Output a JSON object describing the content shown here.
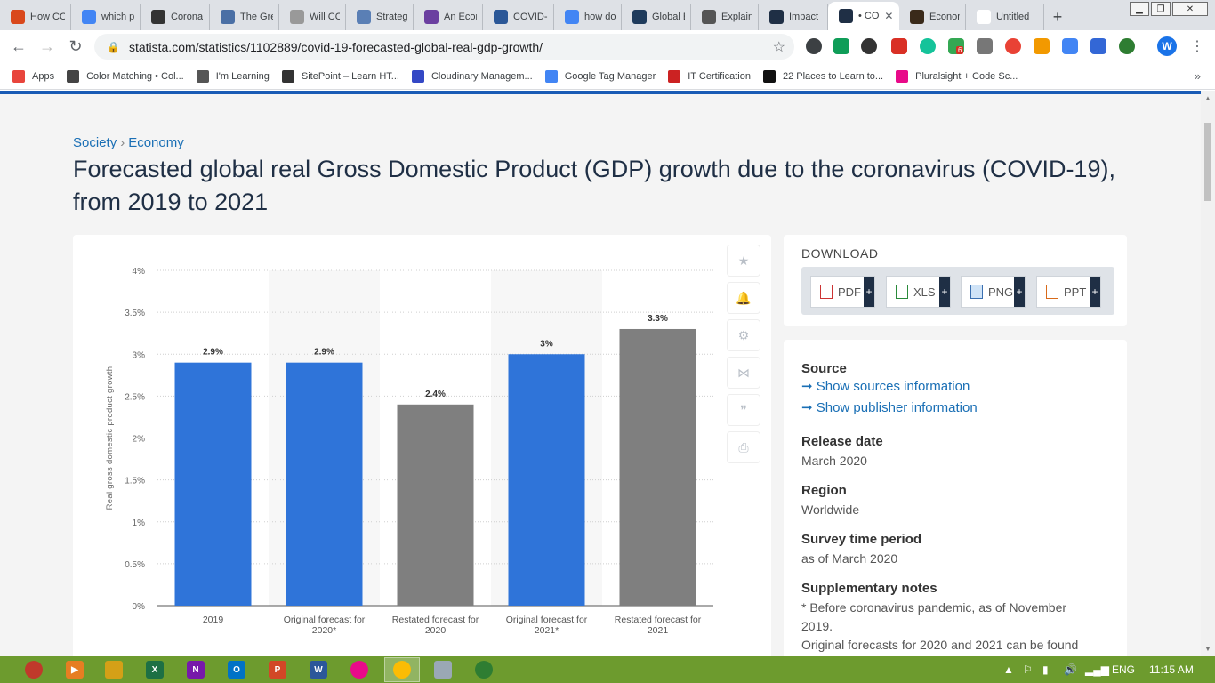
{
  "browser": {
    "tabs": [
      {
        "title": "How CO",
        "color": "#d9481c"
      },
      {
        "title": "which p",
        "color": "#4285f4"
      },
      {
        "title": "Corona",
        "color": "#333333"
      },
      {
        "title": "The Gre",
        "color": "#4a6fa5"
      },
      {
        "title": "Will CO",
        "color": "#999999"
      },
      {
        "title": "Strategi",
        "color": "#5a7fb5"
      },
      {
        "title": "An Econ",
        "color": "#6b3fa0"
      },
      {
        "title": "COVID-",
        "color": "#2b5797"
      },
      {
        "title": "how do",
        "color": "#4285f4"
      },
      {
        "title": "Global E",
        "color": "#1f3b5c"
      },
      {
        "title": "Explaine",
        "color": "#555555"
      },
      {
        "title": "Impact",
        "color": "#1f2f45"
      },
      {
        "title": "• CO",
        "color": "#1f2f45"
      },
      {
        "title": "Econom",
        "color": "#3a2a1a"
      },
      {
        "title": "Untitled",
        "color": "#ffffff"
      }
    ],
    "url": "statista.com/statistics/1102889/covid-19-forecasted-global-real-gdp-growth/",
    "profile_initial": "W",
    "ext_badge": "6",
    "bookmarks": [
      {
        "label": "Apps",
        "color": "#e8453c"
      },
      {
        "label": "Color Matching • Col...",
        "color": "#444444"
      },
      {
        "label": "I'm Learning",
        "color": "#555555"
      },
      {
        "label": "SitePoint – Learn HT...",
        "color": "#333333"
      },
      {
        "label": "Cloudinary Managem...",
        "color": "#3448c5"
      },
      {
        "label": "Google Tag Manager",
        "color": "#4285f4"
      },
      {
        "label": "IT Certification",
        "color": "#cc2222"
      },
      {
        "label": "22 Places to Learn to...",
        "color": "#111111"
      },
      {
        "label": "Pluralsight + Code Sc...",
        "color": "#e80a89"
      }
    ]
  },
  "page": {
    "breadcrumb": [
      "Society",
      "Economy"
    ],
    "title": "Forecasted global real Gross Domestic Product (GDP) growth due to the coronavirus (COVID-19), from 2019 to 2021",
    "download": {
      "heading": "DOWNLOAD",
      "buttons": [
        "PDF",
        "XLS",
        "PNG",
        "PPT"
      ]
    },
    "info": {
      "source_heading": "Source",
      "source_link": "➞ Show sources information",
      "publisher_link": "➞ Show publisher information",
      "release_heading": "Release date",
      "release_value": "March 2020",
      "region_heading": "Region",
      "region_value": "Worldwide",
      "survey_heading": "Survey time period",
      "survey_value": "as of March 2020",
      "notes_heading": "Supplementary notes",
      "notes_value_1": "* Before coronavirus pandemic, as of November 2019.",
      "notes_value_2": "Original forecasts for 2020 and 2021 can be found"
    }
  },
  "chart_data": {
    "type": "bar",
    "categories": [
      "2019",
      "Original forecast for 2020*",
      "Restated forecast for 2020",
      "Original forecast for 2021*",
      "Restated forecast for 2021"
    ],
    "category_lines": [
      [
        "2019"
      ],
      [
        "Original forecast for",
        "2020*"
      ],
      [
        "Restated forecast for",
        "2020"
      ],
      [
        "Original forecast for",
        "2021*"
      ],
      [
        "Restated forecast for",
        "2021"
      ]
    ],
    "values": [
      2.9,
      2.9,
      2.4,
      3.0,
      3.3
    ],
    "value_labels": [
      "2.9%",
      "2.9%",
      "2.4%",
      "3%",
      "3.3%"
    ],
    "bar_colors": [
      "#2f74d9",
      "#2f74d9",
      "#7f7f7f",
      "#2f74d9",
      "#7f7f7f"
    ],
    "highlight_bands": [
      1,
      3
    ],
    "ylabel": "Real gross domestic product growth",
    "ylim": [
      0,
      4
    ],
    "yticks": [
      0,
      0.5,
      1,
      1.5,
      2,
      2.5,
      3,
      3.5,
      4
    ],
    "ytick_labels": [
      "0%",
      "0.5%",
      "1%",
      "1.5%",
      "2%",
      "2.5%",
      "3%",
      "3.5%",
      "4%"
    ],
    "grid": true
  },
  "taskbar": {
    "language": "ENG",
    "time": "11:15 AM"
  }
}
